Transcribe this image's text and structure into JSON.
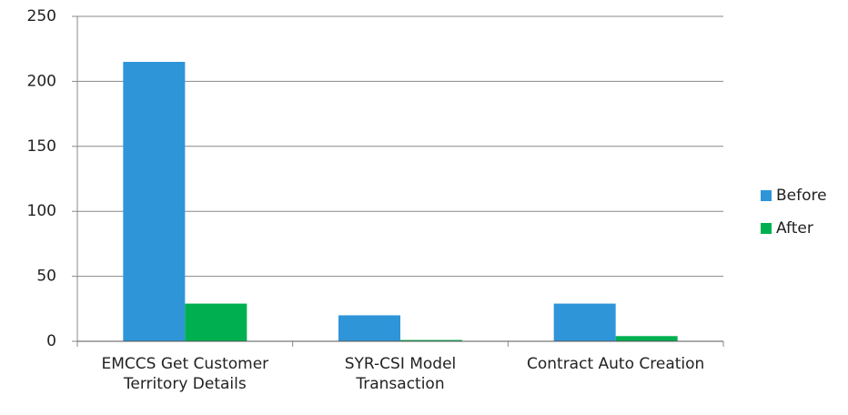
{
  "chart_data": {
    "type": "bar",
    "categories": [
      "EMCCS Get Customer Territory Details",
      "SYR-CSI Model Transaction",
      "Contract Auto Creation"
    ],
    "series": [
      {
        "name": "Before",
        "color": "#2e95d9",
        "values": [
          215,
          20,
          29
        ]
      },
      {
        "name": "After",
        "color": "#00b050",
        "values": [
          29,
          1,
          4
        ]
      }
    ],
    "ylim": [
      0,
      250
    ],
    "yticks": [
      0,
      50,
      100,
      150,
      200,
      250
    ],
    "grid": true,
    "legend": "right"
  }
}
